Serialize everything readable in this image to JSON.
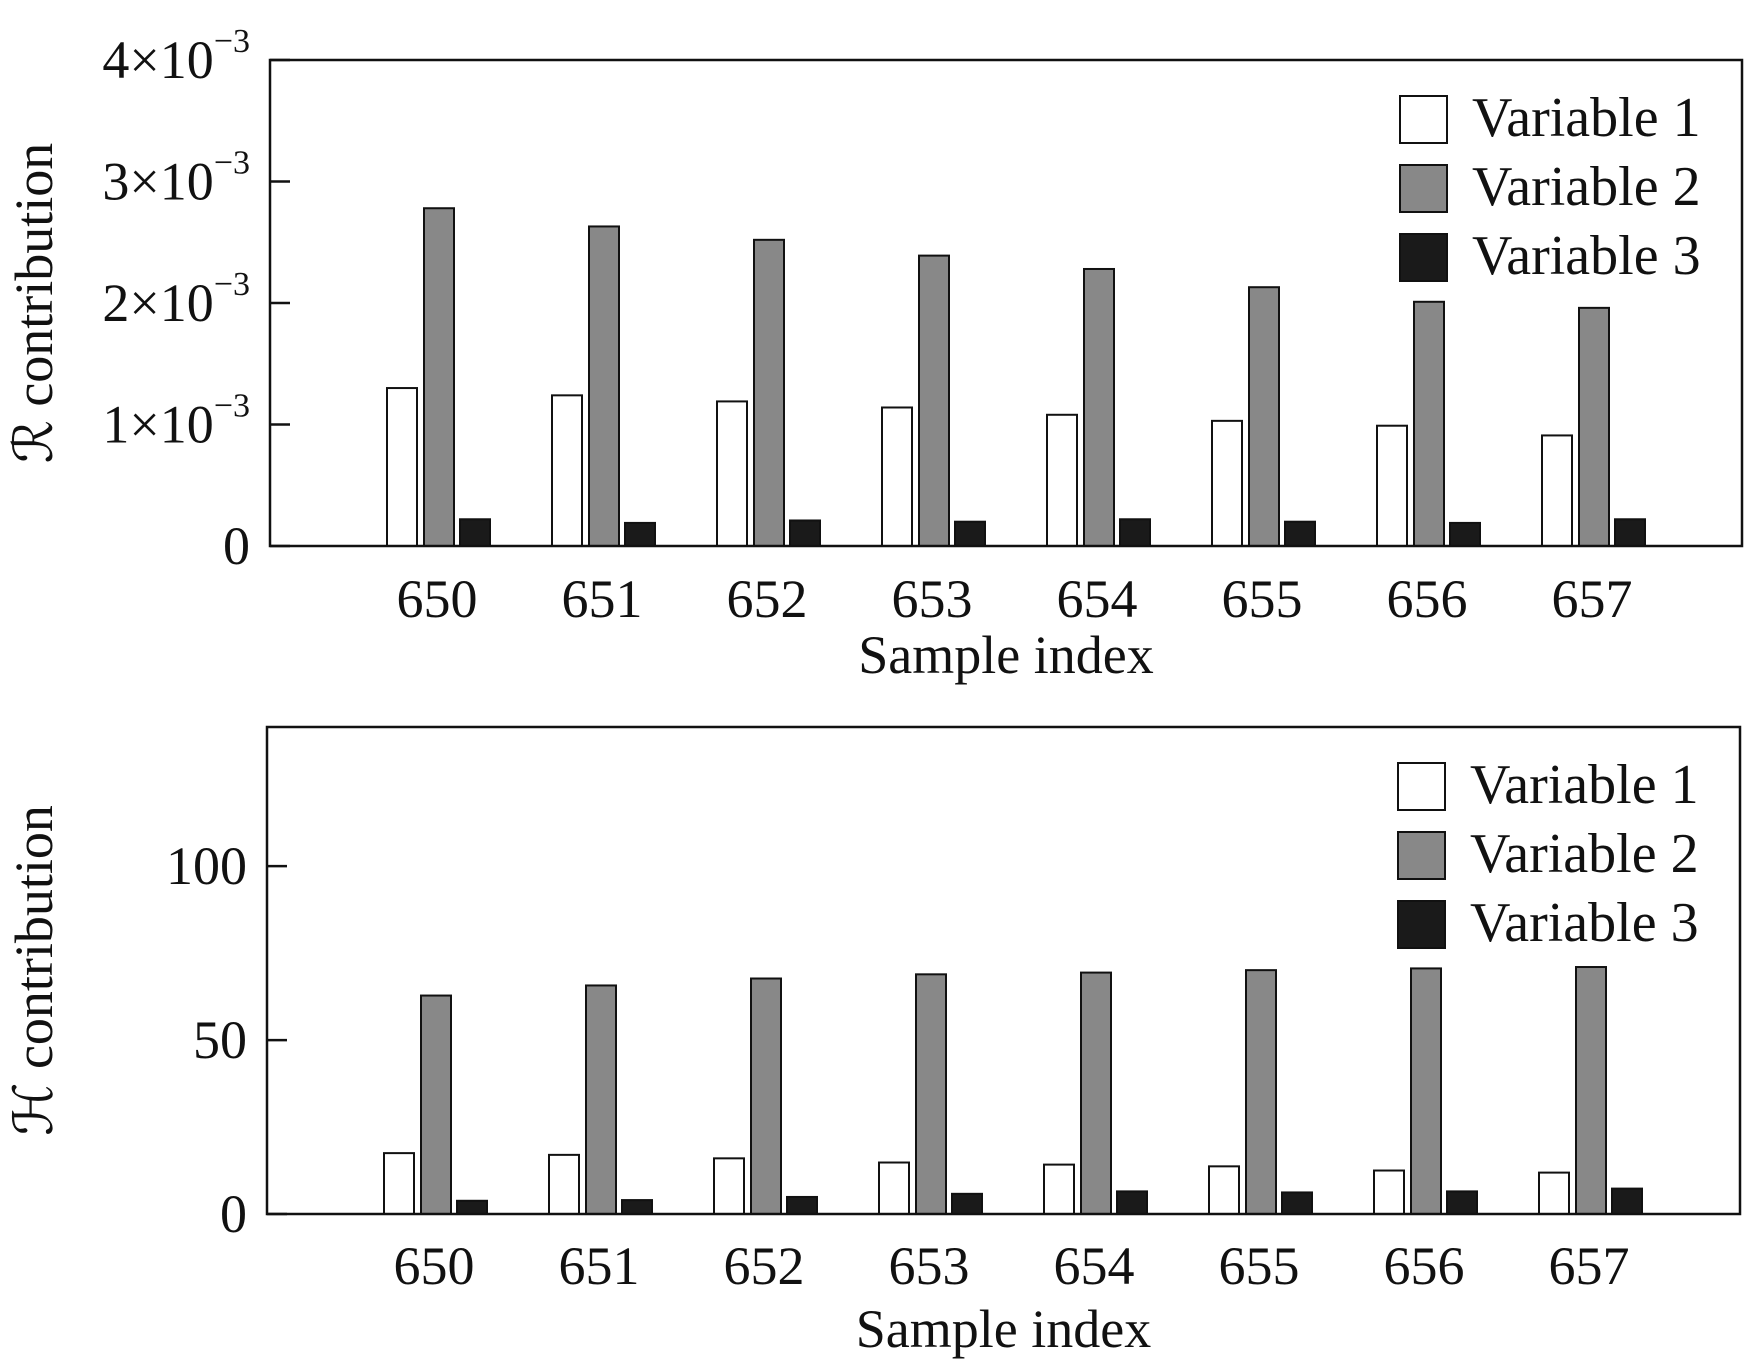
{
  "chart_data": [
    {
      "id": "r",
      "type": "bar",
      "xlabel": "Sample index",
      "ylabel": "ℛ contribution",
      "ylim": [
        0,
        0.004
      ],
      "yticks": [
        {
          "value": 0,
          "label": "0"
        },
        {
          "value": 0.001,
          "base": "1×10",
          "exp": "−3"
        },
        {
          "value": 0.002,
          "base": "2×10",
          "exp": "−3"
        },
        {
          "value": 0.003,
          "base": "3×10",
          "exp": "−3"
        },
        {
          "value": 0.004,
          "base": "4×10",
          "exp": "−3"
        }
      ],
      "categories": [
        "650",
        "651",
        "652",
        "653",
        "654",
        "655",
        "656",
        "657"
      ],
      "series": [
        {
          "name": "Variable 1",
          "color": "#ffffff",
          "values": [
            0.0013,
            0.00124,
            0.00119,
            0.00114,
            0.00108,
            0.00103,
            0.00099,
            0.00091
          ]
        },
        {
          "name": "Variable 2",
          "color": "#888888",
          "values": [
            0.00278,
            0.00263,
            0.00252,
            0.00239,
            0.00228,
            0.00213,
            0.00201,
            0.00196
          ]
        },
        {
          "name": "Variable 3",
          "color": "#1a1a1a",
          "values": [
            0.00022,
            0.00019,
            0.00021,
            0.0002,
            0.00022,
            0.0002,
            0.00019,
            0.00022
          ]
        }
      ],
      "legend_position": "top-right",
      "grid": false
    },
    {
      "id": "h",
      "type": "bar",
      "xlabel": "Sample index",
      "ylabel": "ℋ contribution",
      "ylim": [
        0,
        140
      ],
      "yticks": [
        {
          "value": 0,
          "label": "0"
        },
        {
          "value": 50,
          "label": "50"
        },
        {
          "value": 100,
          "label": "100"
        }
      ],
      "categories": [
        "650",
        "651",
        "652",
        "653",
        "654",
        "655",
        "656",
        "657"
      ],
      "series": [
        {
          "name": "Variable 1",
          "color": "#ffffff",
          "values": [
            17.5,
            17.0,
            16.0,
            14.8,
            14.2,
            13.7,
            12.5,
            11.9
          ]
        },
        {
          "name": "Variable 2",
          "color": "#888888",
          "values": [
            62.8,
            65.7,
            67.7,
            68.9,
            69.4,
            70.1,
            70.6,
            71.0
          ]
        },
        {
          "name": "Variable 3",
          "color": "#1a1a1a",
          "values": [
            3.8,
            4.0,
            4.9,
            5.8,
            6.5,
            6.2,
            6.5,
            7.3
          ]
        }
      ],
      "legend_position": "top-right",
      "grid": false
    }
  ]
}
